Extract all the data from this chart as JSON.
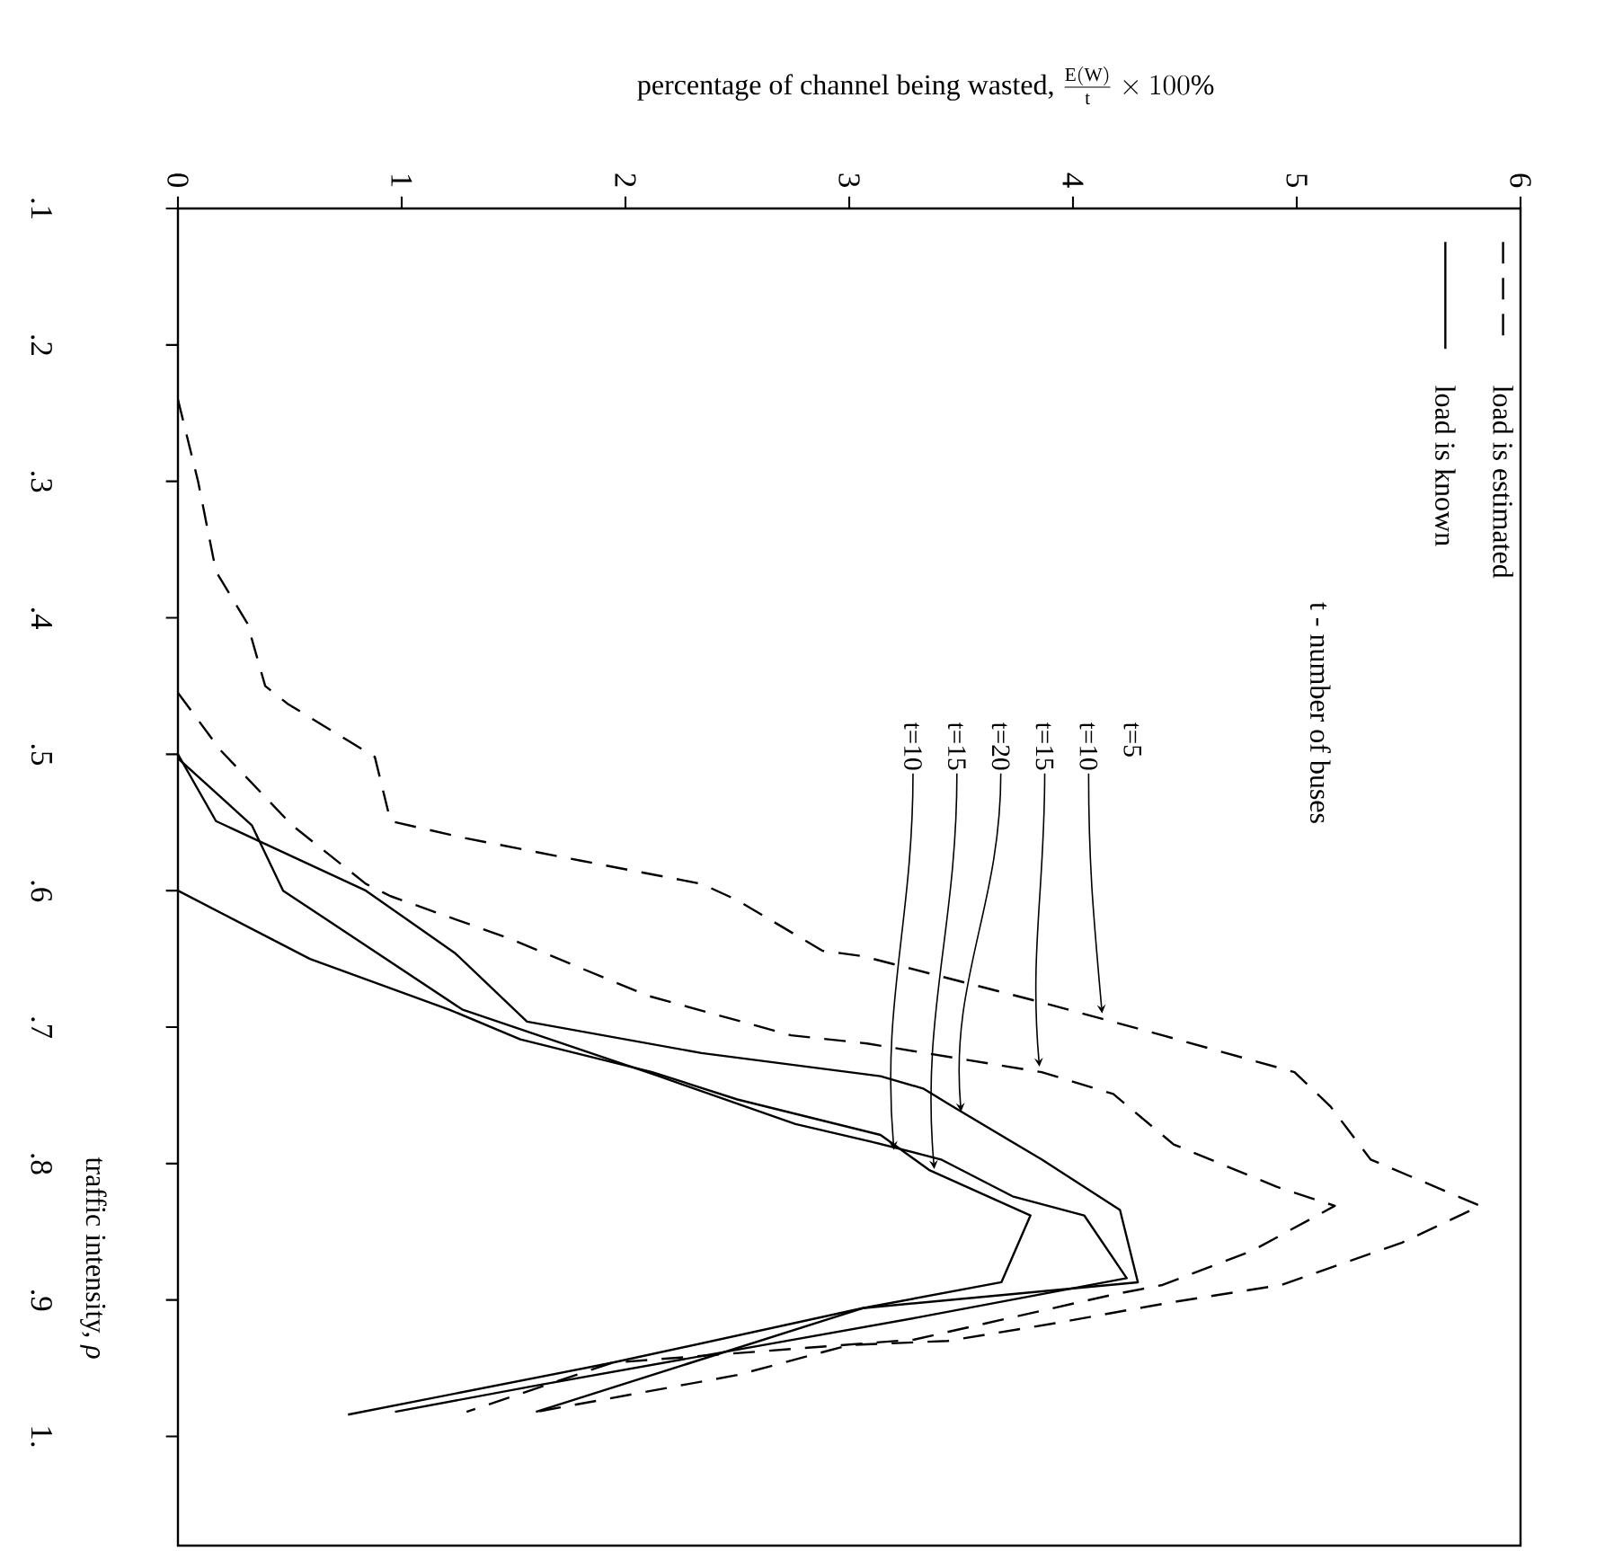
{
  "chart_data": {
    "type": "line",
    "ylabel": "traffic intensity, *ρ*",
    "xlabel": "\\mbox{percentage of channel being wasted, }\\frac{\\mathrm{E(W)}}{\\mathrm{t}}\\times 100\\%",
    "xlim": [
      0,
      6
    ],
    "ylim": [
      1.08,
      0.1
    ],
    "xticks": [
      0,
      1,
      2,
      3,
      4,
      5,
      6
    ],
    "yticks": [
      {
        "value": 0.1,
        "label": ".1"
      },
      {
        "value": 0.2,
        "label": ".2"
      },
      {
        "value": 0.3,
        "label": ".3"
      },
      {
        "value": 0.4,
        "label": ".4"
      },
      {
        "value": 0.5,
        "label": ".5"
      },
      {
        "value": 0.6,
        "label": ".6"
      },
      {
        "value": 0.7,
        "label": ".7"
      },
      {
        "value": 0.8,
        "label": ".8"
      },
      {
        "value": 0.9,
        "label": ".9"
      },
      {
        "value": 1.0,
        "label": "1."
      }
    ],
    "legend": "top right",
    "series": [
      {
        "name": "load is estimated",
        "color": "#000000",
        "line_style": "dashed",
        "x": [
          0.0,
          0.09,
          0.17,
          0.31,
          0.39,
          0.49,
          0.88,
          0.95,
          1.27,
          1.8,
          2.34,
          2.5,
          2.88,
          3.06,
          3.84,
          4.4,
          4.99,
          5.15,
          5.33,
          5.82,
          5.47,
          4.93,
          4.43,
          3.92,
          3.44,
          3.0,
          2.5,
          1.6
        ],
        "values": [
          0.24,
          0.3,
          0.366,
          0.404,
          0.45,
          0.463,
          0.502,
          0.549,
          0.561,
          0.578,
          0.595,
          0.607,
          0.644,
          0.648,
          0.681,
          0.706,
          0.733,
          0.758,
          0.797,
          0.831,
          0.858,
          0.889,
          0.902,
          0.917,
          0.93,
          0.933,
          0.955,
          0.982
        ]
      },
      {
        "color": "#000000",
        "line_style": "dashed",
        "x": [
          0.0,
          0.19,
          0.51,
          0.84,
          0.95,
          1.48,
          2.1,
          2.74,
          3.08,
          3.86,
          4.18,
          4.45,
          4.91,
          5.17,
          4.8,
          4.4,
          4.18,
          3.29,
          1.94,
          1.29
        ],
        "values": [
          0.455,
          0.497,
          0.552,
          0.595,
          0.604,
          0.635,
          0.677,
          0.706,
          0.712,
          0.733,
          0.749,
          0.786,
          0.817,
          0.831,
          0.864,
          0.889,
          0.896,
          0.929,
          0.946,
          0.982
        ]
      },
      {
        "name": "load is known",
        "color": "#000000",
        "line_style": "solid",
        "x": [
          0.0,
          0.17,
          0.84,
          1.24,
          1.56,
          2.34,
          3.14,
          3.33,
          3.46,
          3.86,
          4.21,
          4.29,
          3.06,
          1.94,
          0.76
        ],
        "values": [
          0.5,
          0.549,
          0.6,
          0.646,
          0.696,
          0.719,
          0.736,
          0.745,
          0.758,
          0.797,
          0.834,
          0.887,
          0.906,
          0.946,
          0.984
        ]
      },
      {
        "color": "#000000",
        "line_style": "solid",
        "x": [
          0.0,
          0.33,
          0.47,
          1.27,
          2.15,
          2.76,
          3.1,
          3.41,
          3.73,
          4.05,
          4.24,
          3.3,
          1.59,
          0.97
        ],
        "values": [
          0.503,
          0.552,
          0.6,
          0.687,
          0.736,
          0.771,
          0.784,
          0.797,
          0.824,
          0.838,
          0.884,
          0.913,
          0.963,
          0.982
        ]
      },
      {
        "color": "#000000",
        "line_style": "solid",
        "x": [
          0.0,
          0.59,
          1.21,
          1.53,
          2.12,
          2.5,
          3.14,
          3.36,
          3.81,
          3.68,
          3.06,
          1.6
        ],
        "values": [
          0.6,
          0.65,
          0.687,
          0.709,
          0.733,
          0.753,
          0.779,
          0.805,
          0.838,
          0.887,
          0.906,
          0.982
        ]
      }
    ],
    "annotations": [
      "t - number of buses",
      "t=5",
      {
        "text": "t=10",
        "x": 4.13,
        "y": 0.69
      },
      {
        "text": "t=15",
        "x": 3.85,
        "y": 0.729
      },
      {
        "text": "t=20",
        "x": 3.5,
        "y": 0.762
      },
      {
        "text": "t=15",
        "x": 3.38,
        "y": 0.804
      },
      {
        "text": "t=10",
        "x": 3.2,
        "y": 0.79
      }
    ]
  }
}
